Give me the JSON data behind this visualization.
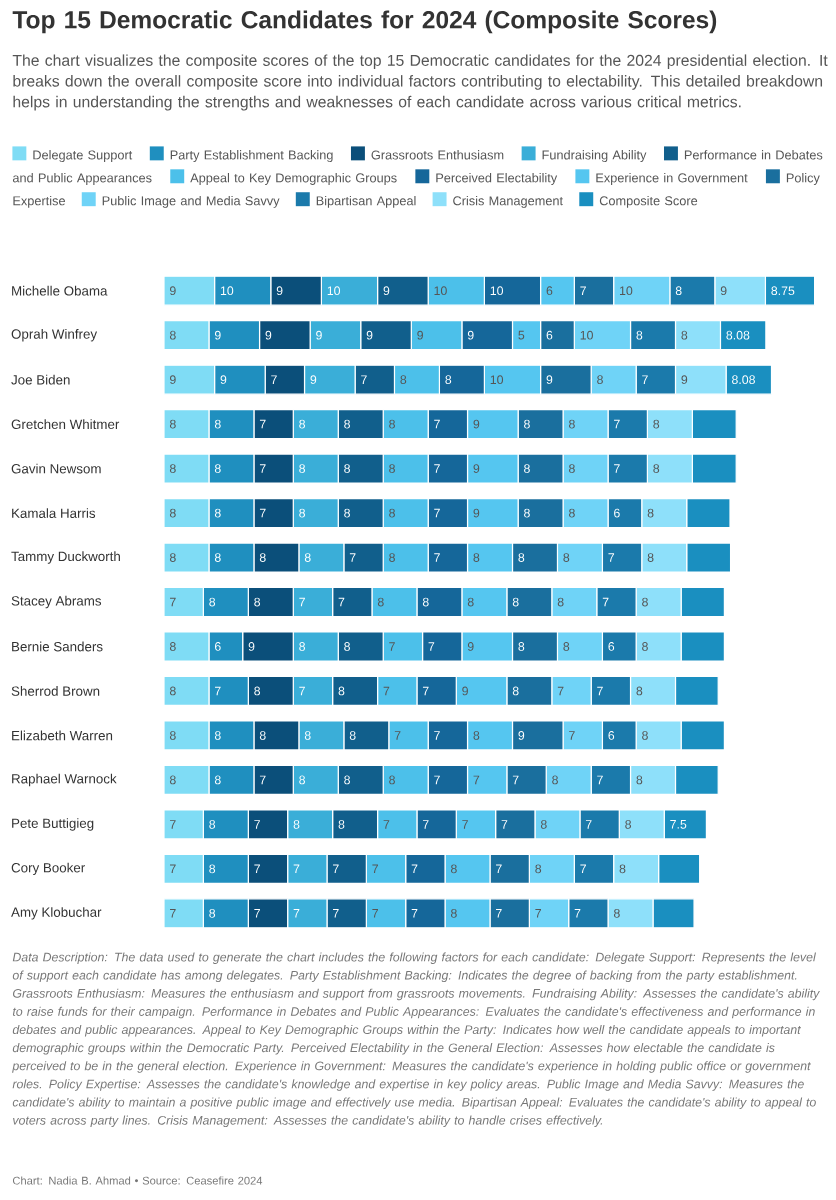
{
  "chart_data": {
    "type": "bar",
    "orientation": "horizontal",
    "stacked": true,
    "title": "Top 15 Democratic Candidates for 2024 (Composite Scores)",
    "subtitle": "The chart visualizes the composite scores of the top 15 Democratic candidates for the 2024 presidential election. It breaks down the overall composite score into individual factors contributing to electability. This detailed breakdown helps in understanding the strengths and weaknesses of each candidate across various critical metrics.",
    "categories": [
      "Michelle Obama",
      "Oprah Winfrey",
      "Joe Biden",
      "Gretchen Whitmer",
      "Gavin Newsom",
      "Kamala Harris",
      "Tammy Duckworth",
      "Stacey Abrams",
      "Bernie Sanders",
      "Sherrod Brown",
      "Elizabeth Warren",
      "Raphael Warnock",
      "Pete Buttigieg",
      "Cory Booker",
      "Amy Klobuchar"
    ],
    "xlim": [
      0,
      116
    ],
    "tick_labels": "y",
    "legend": "top",
    "series": [
      {
        "name": "Delegate Support",
        "color": "#7fdcf5",
        "values": [
          9,
          8,
          9,
          8,
          8,
          8,
          8,
          7,
          8,
          8,
          8,
          8,
          7,
          7,
          7
        ],
        "value_labels": [
          "9",
          "8",
          "9",
          "8",
          "8",
          "8",
          "8",
          "7",
          "8",
          "8",
          "8",
          "8",
          "7",
          "7",
          "7"
        ]
      },
      {
        "name": "Party Establishment Backing",
        "color": "#1f8fbf",
        "values": [
          10,
          9,
          9,
          8,
          8,
          8,
          8,
          8,
          6,
          7,
          8,
          8,
          8,
          8,
          8
        ],
        "value_labels": [
          "10",
          "9",
          "9",
          "8",
          "8",
          "8",
          "8",
          "8",
          "6",
          "7",
          "8",
          "8",
          "8",
          "8",
          "8"
        ]
      },
      {
        "name": "Grassroots Enthusiasm",
        "color": "#0b4f7a",
        "values": [
          9,
          9,
          7,
          7,
          7,
          7,
          8,
          8,
          9,
          8,
          8,
          7,
          7,
          7,
          7
        ],
        "value_labels": [
          "9",
          "9",
          "7",
          "7",
          "7",
          "7",
          "8",
          "8",
          "9",
          "8",
          "8",
          "7",
          "7",
          "7",
          "7"
        ]
      },
      {
        "name": "Fundraising Ability",
        "color": "#3aaed8",
        "values": [
          10,
          9,
          9,
          8,
          8,
          8,
          8,
          7,
          8,
          7,
          8,
          8,
          8,
          7,
          7
        ],
        "value_labels": [
          "10",
          "9",
          "9",
          "8",
          "8",
          "8",
          "8",
          "7",
          "8",
          "7",
          "8",
          "8",
          "8",
          "7",
          "7"
        ]
      },
      {
        "name": "Performance in Debates and Public Appearances",
        "color": "#115f8c",
        "values": [
          9,
          9,
          7,
          8,
          8,
          8,
          7,
          7,
          8,
          8,
          8,
          8,
          8,
          7,
          7
        ],
        "value_labels": [
          "9",
          "9",
          "7",
          "8",
          "8",
          "8",
          "7",
          "7",
          "8",
          "8",
          "8",
          "8",
          "8",
          "7",
          "7"
        ]
      },
      {
        "name": "Appeal to Key Demographic Groups",
        "color": "#4cc0ea",
        "values": [
          10,
          9,
          8,
          8,
          8,
          8,
          8,
          8,
          7,
          7,
          7,
          8,
          7,
          7,
          7
        ],
        "value_labels": [
          "10",
          "9",
          "8",
          "8",
          "8",
          "8",
          "8",
          "8",
          "7",
          "7",
          "7",
          "8",
          "7",
          "7",
          "7"
        ]
      },
      {
        "name": "Perceived Electability",
        "color": "#15679a",
        "values": [
          10,
          9,
          8,
          7,
          7,
          7,
          7,
          8,
          7,
          7,
          7,
          7,
          7,
          7,
          7
        ],
        "value_labels": [
          "10",
          "9",
          "8",
          "7",
          "7",
          "7",
          "7",
          "8",
          "7",
          "7",
          "7",
          "7",
          "7",
          "7",
          "7"
        ]
      },
      {
        "name": "Experience in Government",
        "color": "#55c6f0",
        "values": [
          6,
          5,
          10,
          9,
          9,
          9,
          8,
          8,
          9,
          9,
          8,
          7,
          7,
          8,
          8
        ],
        "value_labels": [
          "6",
          "5",
          "10",
          "9",
          "9",
          "9",
          "8",
          "8",
          "9",
          "9",
          "8",
          "7",
          "7",
          "8",
          "8"
        ]
      },
      {
        "name": "Policy Expertise",
        "color": "#1a6f9e",
        "values": [
          7,
          6,
          9,
          8,
          8,
          8,
          8,
          8,
          8,
          8,
          9,
          7,
          7,
          7,
          7
        ],
        "value_labels": [
          "7",
          "6",
          "9",
          "8",
          "8",
          "8",
          "8",
          "8",
          "8",
          "8",
          "9",
          "7",
          "7",
          "7",
          "7"
        ]
      },
      {
        "name": "Public Image and Media Savvy",
        "color": "#6fd3f7",
        "values": [
          10,
          10,
          8,
          8,
          8,
          8,
          8,
          8,
          8,
          7,
          7,
          8,
          8,
          8,
          7
        ],
        "value_labels": [
          "10",
          "10",
          "8",
          "8",
          "8",
          "8",
          "8",
          "8",
          "8",
          "7",
          "7",
          "8",
          "8",
          "8",
          "7"
        ]
      },
      {
        "name": "Bipartisan Appeal",
        "color": "#1b7aab",
        "values": [
          8,
          8,
          7,
          7,
          7,
          6,
          7,
          7,
          6,
          7,
          6,
          7,
          7,
          7,
          7
        ],
        "value_labels": [
          "8",
          "8",
          "7",
          "7",
          "7",
          "6",
          "7",
          "7",
          "6",
          "7",
          "6",
          "7",
          "7",
          "7",
          "7"
        ]
      },
      {
        "name": "Crisis Management",
        "color": "#8ee0fa",
        "values": [
          9,
          8,
          9,
          8,
          8,
          8,
          8,
          8,
          8,
          8,
          8,
          8,
          8,
          8,
          8
        ],
        "value_labels": [
          "9",
          "8",
          "9",
          "8",
          "8",
          "8",
          "8",
          "8",
          "8",
          "8",
          "8",
          "8",
          "8",
          "8",
          "8"
        ]
      },
      {
        "name": "Composite Score",
        "color": "#1a8fc0",
        "values": [
          8.75,
          8.08,
          8.08,
          7.8,
          7.8,
          7.7,
          7.8,
          7.7,
          7.7,
          7.6,
          7.7,
          7.6,
          7.5,
          7.3,
          7.3
        ],
        "value_labels": [
          "8.75",
          "8.08",
          "8.08",
          null,
          null,
          null,
          null,
          null,
          null,
          null,
          null,
          null,
          "7.5",
          null,
          null
        ]
      }
    ],
    "annotations": [
      "Data Description: The data used to generate the chart includes the following factors for each candidate: Delegate Support: Represents the level of support each candidate has among delegates. Party Establishment Backing: Indicates the degree of backing from the party establishment. Grassroots Enthusiasm: Measures the enthusiasm and support from grassroots movements. Fundraising Ability: Assesses the candidate's ability to raise funds for their campaign. Performance in Debates and Public Appearances: Evaluates the candidate's effectiveness and performance in debates and public appearances. Appeal to Key Demographic Groups within the Party: Indicates how well the candidate appeals to important demographic groups within the Democratic Party. Perceived Electability in the General Election: Assesses how electable the candidate is perceived to be in the general election. Experience in Government: Measures the candidate's experience in holding public office or government roles. Policy Expertise: Assesses the candidate's knowledge and expertise in key policy areas. Public Image and Media Savvy: Measures the candidate's ability to maintain a positive public image and effectively use media. Bipartisan Appeal: Evaluates the candidate's ability to appeal to voters across party lines. Crisis Management: Assesses the candidate's ability to handle crises effectively.",
      "Chart: Nadia B. Ahmad • Source: Ceasefire 2024"
    ]
  }
}
